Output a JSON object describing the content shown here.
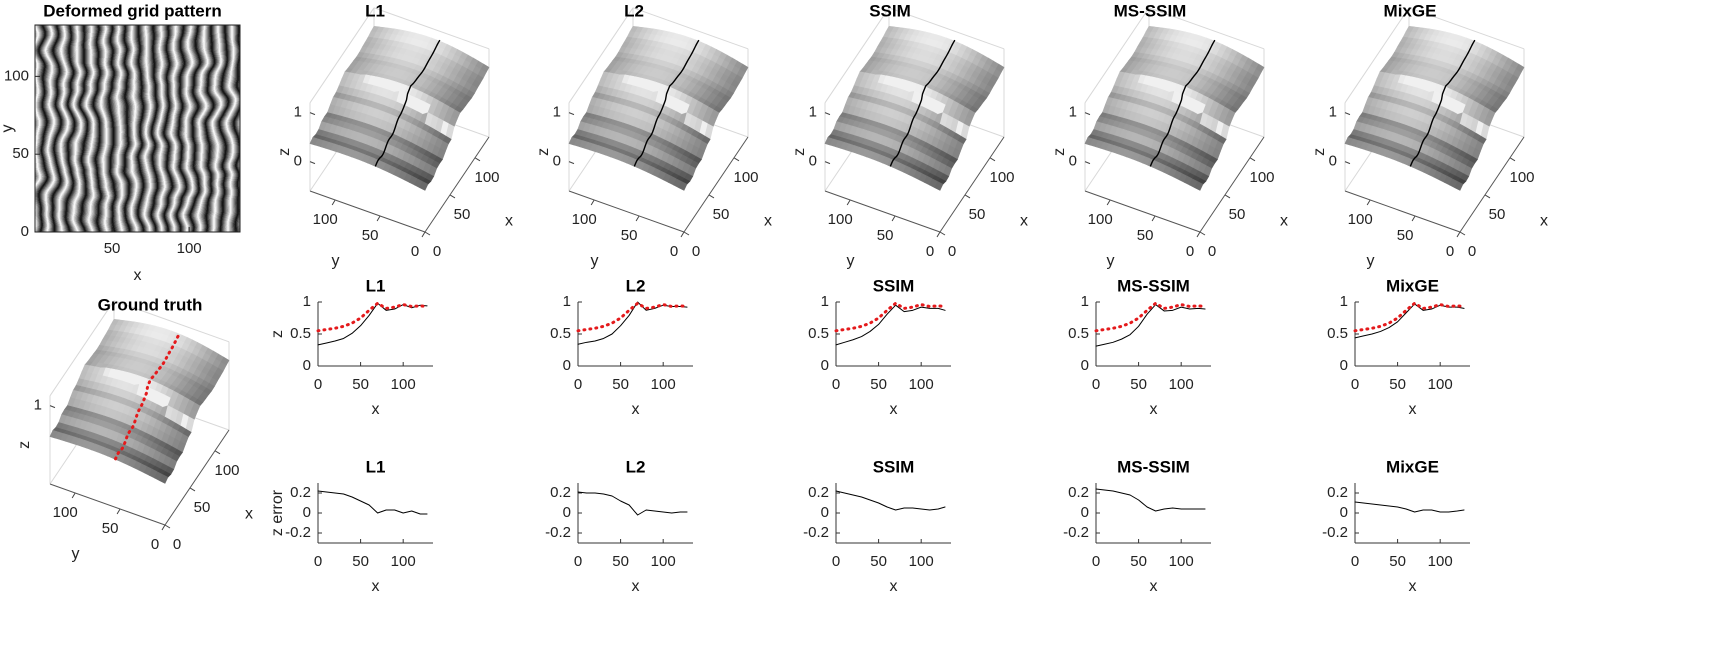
{
  "chart_data": [
    {
      "type": "image",
      "title": "Deformed grid pattern",
      "xlabel": "x",
      "ylabel": "y",
      "xlim": [
        0,
        133
      ],
      "ylim": [
        0,
        133
      ],
      "xticks": [
        50,
        100
      ],
      "yticks": [
        0,
        50,
        100
      ]
    },
    {
      "type": "surface",
      "title": "L1",
      "xlabel": "x",
      "ylabel": "y",
      "zlabel": "z",
      "xlim": [
        0,
        128
      ],
      "ylim": [
        0,
        128
      ],
      "zlim": [
        -0.6,
        1.2
      ],
      "xticks": [
        0,
        50,
        100
      ],
      "yticks": [
        0,
        50,
        100
      ],
      "zticks": [
        0,
        1
      ],
      "profile_color": "#000000",
      "profile_style": "solid"
    },
    {
      "type": "surface",
      "title": "L2",
      "xlabel": "x",
      "ylabel": "y",
      "zlabel": "z",
      "xlim": [
        0,
        128
      ],
      "ylim": [
        0,
        128
      ],
      "zlim": [
        -0.6,
        1.2
      ],
      "xticks": [
        0,
        50,
        100
      ],
      "yticks": [
        0,
        50,
        100
      ],
      "zticks": [
        0,
        1
      ],
      "profile_color": "#000000",
      "profile_style": "solid"
    },
    {
      "type": "surface",
      "title": "SSIM",
      "xlabel": "x",
      "ylabel": "y",
      "zlabel": "z",
      "xlim": [
        0,
        128
      ],
      "ylim": [
        0,
        128
      ],
      "zlim": [
        -0.6,
        1.2
      ],
      "xticks": [
        0,
        50,
        100
      ],
      "yticks": [
        0,
        50,
        100
      ],
      "zticks": [
        0,
        1
      ],
      "profile_color": "#000000",
      "profile_style": "solid"
    },
    {
      "type": "surface",
      "title": "MS-SSIM",
      "xlabel": "x",
      "ylabel": "y",
      "zlabel": "z",
      "xlim": [
        0,
        128
      ],
      "ylim": [
        0,
        128
      ],
      "zlim": [
        -0.6,
        1.2
      ],
      "xticks": [
        0,
        50,
        100
      ],
      "yticks": [
        0,
        50,
        100
      ],
      "zticks": [
        0,
        1
      ],
      "profile_color": "#000000",
      "profile_style": "solid"
    },
    {
      "type": "surface",
      "title": "MixGE",
      "xlabel": "x",
      "ylabel": "y",
      "zlabel": "z",
      "xlim": [
        0,
        128
      ],
      "ylim": [
        0,
        128
      ],
      "zlim": [
        -0.6,
        1.2
      ],
      "xticks": [
        0,
        50,
        100
      ],
      "yticks": [
        0,
        50,
        100
      ],
      "zticks": [
        0,
        1
      ],
      "profile_color": "#000000",
      "profile_style": "solid"
    },
    {
      "type": "surface",
      "title": "Ground truth",
      "xlabel": "x",
      "ylabel": "y",
      "zlabel": "z",
      "xlim": [
        0,
        128
      ],
      "ylim": [
        0,
        128
      ],
      "zlim": [
        -0.6,
        1.2
      ],
      "xticks": [
        0,
        50,
        100
      ],
      "yticks": [
        0,
        50,
        100
      ],
      "zticks": [
        1
      ],
      "profile_color": "#e41a1c",
      "profile_style": "dotted"
    },
    {
      "type": "line",
      "title": "L1",
      "xlabel": "x",
      "ylabel": "z",
      "xlim": [
        0,
        135
      ],
      "ylim": [
        0,
        1
      ],
      "xticks": [
        0,
        50,
        100
      ],
      "yticks": [
        0,
        0.5,
        1
      ],
      "x": [
        0,
        10,
        20,
        30,
        40,
        50,
        60,
        70,
        80,
        90,
        100,
        110,
        120,
        128
      ],
      "series": [
        {
          "color": "#000000",
          "style": "solid",
          "values": [
            0.33,
            0.36,
            0.39,
            0.43,
            0.51,
            0.63,
            0.79,
            0.98,
            0.87,
            0.89,
            0.96,
            0.91,
            0.95,
            0.94
          ]
        },
        {
          "color": "#e41a1c",
          "style": "dotted",
          "values": [
            0.55,
            0.57,
            0.59,
            0.62,
            0.67,
            0.75,
            0.87,
            0.98,
            0.9,
            0.92,
            0.96,
            0.93,
            0.94,
            0.93
          ]
        }
      ]
    },
    {
      "type": "line",
      "title": "L2",
      "xlabel": "x",
      "xlim": [
        0,
        135
      ],
      "ylim": [
        0,
        1
      ],
      "xticks": [
        0,
        50,
        100
      ],
      "yticks": [
        0,
        0.5,
        1
      ],
      "x": [
        0,
        10,
        20,
        30,
        40,
        50,
        60,
        70,
        80,
        90,
        100,
        110,
        120,
        128
      ],
      "series": [
        {
          "color": "#000000",
          "style": "solid",
          "values": [
            0.34,
            0.37,
            0.39,
            0.43,
            0.5,
            0.63,
            0.79,
            1.0,
            0.87,
            0.9,
            0.95,
            0.93,
            0.93,
            0.92
          ]
        },
        {
          "color": "#e41a1c",
          "style": "dotted",
          "values": [
            0.55,
            0.57,
            0.59,
            0.62,
            0.67,
            0.75,
            0.87,
            0.98,
            0.9,
            0.92,
            0.96,
            0.93,
            0.94,
            0.93
          ]
        }
      ]
    },
    {
      "type": "line",
      "title": "SSIM",
      "xlabel": "x",
      "xlim": [
        0,
        135
      ],
      "ylim": [
        0,
        1
      ],
      "xticks": [
        0,
        50,
        100
      ],
      "yticks": [
        0,
        0.5,
        1
      ],
      "x": [
        0,
        10,
        20,
        30,
        40,
        50,
        60,
        70,
        80,
        90,
        100,
        110,
        120,
        128
      ],
      "series": [
        {
          "color": "#000000",
          "style": "solid",
          "values": [
            0.33,
            0.37,
            0.41,
            0.46,
            0.54,
            0.65,
            0.81,
            0.95,
            0.85,
            0.87,
            0.92,
            0.9,
            0.9,
            0.87
          ]
        },
        {
          "color": "#e41a1c",
          "style": "dotted",
          "values": [
            0.55,
            0.57,
            0.59,
            0.62,
            0.67,
            0.75,
            0.87,
            0.98,
            0.9,
            0.92,
            0.96,
            0.93,
            0.94,
            0.93
          ]
        }
      ]
    },
    {
      "type": "line",
      "title": "MS-SSIM",
      "xlabel": "x",
      "xlim": [
        0,
        135
      ],
      "ylim": [
        0,
        1
      ],
      "xticks": [
        0,
        50,
        100
      ],
      "yticks": [
        0,
        0.5,
        1
      ],
      "x": [
        0,
        10,
        20,
        30,
        40,
        50,
        60,
        70,
        80,
        90,
        100,
        110,
        120,
        128
      ],
      "series": [
        {
          "color": "#000000",
          "style": "solid",
          "values": [
            0.31,
            0.34,
            0.37,
            0.42,
            0.49,
            0.62,
            0.81,
            0.96,
            0.86,
            0.87,
            0.92,
            0.89,
            0.9,
            0.89
          ]
        },
        {
          "color": "#e41a1c",
          "style": "dotted",
          "values": [
            0.55,
            0.57,
            0.59,
            0.62,
            0.67,
            0.75,
            0.87,
            0.98,
            0.9,
            0.92,
            0.96,
            0.93,
            0.94,
            0.93
          ]
        }
      ]
    },
    {
      "type": "line",
      "title": "MixGE",
      "xlabel": "x",
      "xlim": [
        0,
        135
      ],
      "ylim": [
        0,
        1
      ],
      "xticks": [
        0,
        50,
        100
      ],
      "yticks": [
        0,
        0.5,
        1
      ],
      "x": [
        0,
        10,
        20,
        30,
        40,
        50,
        60,
        70,
        80,
        90,
        100,
        110,
        120,
        128
      ],
      "series": [
        {
          "color": "#000000",
          "style": "solid",
          "values": [
            0.44,
            0.47,
            0.5,
            0.54,
            0.6,
            0.69,
            0.83,
            0.97,
            0.87,
            0.89,
            0.95,
            0.92,
            0.92,
            0.9
          ]
        },
        {
          "color": "#e41a1c",
          "style": "dotted",
          "values": [
            0.55,
            0.57,
            0.59,
            0.62,
            0.67,
            0.75,
            0.87,
            0.98,
            0.9,
            0.92,
            0.96,
            0.93,
            0.94,
            0.93
          ]
        }
      ]
    },
    {
      "type": "line",
      "title": "L1",
      "xlabel": "x",
      "ylabel": "z error",
      "xlim": [
        0,
        135
      ],
      "ylim": [
        -0.3,
        0.3
      ],
      "xticks": [
        0,
        50,
        100
      ],
      "yticks": [
        -0.2,
        0,
        0.2
      ],
      "x": [
        0,
        10,
        20,
        30,
        40,
        50,
        60,
        70,
        80,
        90,
        100,
        110,
        120,
        128
      ],
      "series": [
        {
          "color": "#000000",
          "style": "solid",
          "values": [
            0.22,
            0.21,
            0.2,
            0.19,
            0.16,
            0.12,
            0.08,
            0.0,
            0.03,
            0.03,
            0.0,
            0.02,
            -0.01,
            -0.01
          ]
        }
      ]
    },
    {
      "type": "line",
      "title": "L2",
      "xlabel": "x",
      "xlim": [
        0,
        135
      ],
      "ylim": [
        -0.3,
        0.3
      ],
      "xticks": [
        0,
        50,
        100
      ],
      "yticks": [
        -0.2,
        0,
        0.2
      ],
      "x": [
        0,
        10,
        20,
        30,
        40,
        50,
        60,
        70,
        80,
        90,
        100,
        110,
        120,
        128
      ],
      "series": [
        {
          "color": "#000000",
          "style": "solid",
          "values": [
            0.21,
            0.2,
            0.2,
            0.19,
            0.17,
            0.12,
            0.08,
            -0.02,
            0.03,
            0.02,
            0.01,
            0.0,
            0.01,
            0.01
          ]
        }
      ]
    },
    {
      "type": "line",
      "title": "SSIM",
      "xlabel": "x",
      "xlim": [
        0,
        135
      ],
      "ylim": [
        -0.3,
        0.3
      ],
      "xticks": [
        0,
        50,
        100
      ],
      "yticks": [
        -0.2,
        0,
        0.2
      ],
      "x": [
        0,
        10,
        20,
        30,
        40,
        50,
        60,
        70,
        80,
        90,
        100,
        110,
        120,
        128
      ],
      "series": [
        {
          "color": "#000000",
          "style": "solid",
          "values": [
            0.22,
            0.2,
            0.18,
            0.16,
            0.13,
            0.1,
            0.06,
            0.03,
            0.05,
            0.05,
            0.04,
            0.03,
            0.04,
            0.06
          ]
        }
      ]
    },
    {
      "type": "line",
      "title": "MS-SSIM",
      "xlabel": "x",
      "xlim": [
        0,
        135
      ],
      "ylim": [
        -0.3,
        0.3
      ],
      "xticks": [
        0,
        50,
        100
      ],
      "yticks": [
        -0.2,
        0,
        0.2
      ],
      "x": [
        0,
        10,
        20,
        30,
        40,
        50,
        60,
        70,
        80,
        90,
        100,
        110,
        120,
        128
      ],
      "series": [
        {
          "color": "#000000",
          "style": "solid",
          "values": [
            0.24,
            0.23,
            0.22,
            0.2,
            0.18,
            0.13,
            0.06,
            0.02,
            0.04,
            0.05,
            0.04,
            0.04,
            0.04,
            0.04
          ]
        }
      ]
    },
    {
      "type": "line",
      "title": "MixGE",
      "xlabel": "x",
      "xlim": [
        0,
        135
      ],
      "ylim": [
        -0.3,
        0.3
      ],
      "xticks": [
        0,
        50,
        100
      ],
      "yticks": [
        -0.2,
        0,
        0.2
      ],
      "x": [
        0,
        10,
        20,
        30,
        40,
        50,
        60,
        70,
        80,
        90,
        100,
        110,
        120,
        128
      ],
      "series": [
        {
          "color": "#000000",
          "style": "solid",
          "values": [
            0.11,
            0.1,
            0.09,
            0.08,
            0.07,
            0.06,
            0.04,
            0.01,
            0.03,
            0.03,
            0.01,
            0.01,
            0.02,
            0.03
          ]
        }
      ]
    }
  ]
}
